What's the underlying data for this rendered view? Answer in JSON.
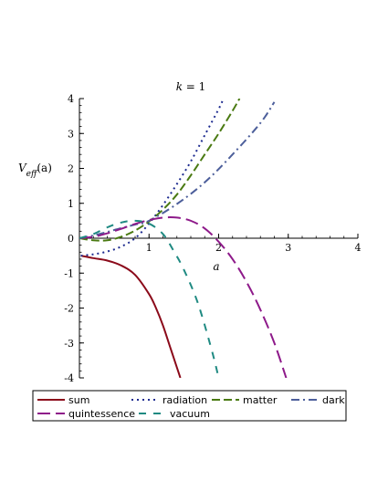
{
  "chart_data": {
    "type": "line",
    "title": "k = 1",
    "title_var": "k",
    "title_rest": " = 1",
    "xlabel": "a",
    "ylabel": "V_eff(a)",
    "ylabel_parts": {
      "V": "V",
      "sub": "eff",
      "arg": "(a)"
    },
    "xlim": [
      0,
      4
    ],
    "ylim": [
      -4,
      4
    ],
    "xticks": [
      "1",
      "2",
      "3",
      "4"
    ],
    "yticks": [
      "-4",
      "-3",
      "-2",
      "-1",
      "0",
      "1",
      "2",
      "3",
      "4"
    ],
    "legend_position": "bottom",
    "series": [
      {
        "name": "sum",
        "color": "#8b0a1a",
        "dash": "solid",
        "x": [
          0.02,
          0.2,
          0.4,
          0.6,
          0.8,
          1.0,
          1.1,
          1.2,
          1.3,
          1.4,
          1.45
        ],
        "y": [
          -0.5,
          -0.57,
          -0.64,
          -0.78,
          -1.05,
          -1.6,
          -2.0,
          -2.5,
          -3.1,
          -3.7,
          -4.0
        ]
      },
      {
        "name": "radiation",
        "color": "#1c2a8f",
        "dash": "dot",
        "x": [
          0.02,
          0.2,
          0.4,
          0.6,
          0.8,
          1.0,
          1.2,
          1.4,
          1.6,
          1.8,
          2.0,
          2.07
        ],
        "y": [
          -0.5,
          -0.46,
          -0.38,
          -0.24,
          0.0,
          0.42,
          0.95,
          1.55,
          2.2,
          2.95,
          3.7,
          4.0
        ]
      },
      {
        "name": "matter",
        "color": "#4a7a12",
        "dash": "long",
        "x": [
          0,
          0.2,
          0.4,
          0.6,
          0.8,
          1.0,
          1.2,
          1.4,
          1.6,
          1.8,
          2.0,
          2.2,
          2.3
        ],
        "y": [
          0.0,
          -0.06,
          -0.06,
          0.04,
          0.22,
          0.48,
          0.82,
          1.25,
          1.8,
          2.4,
          3.0,
          3.65,
          4.0
        ]
      },
      {
        "name": "dark",
        "color": "#4d5f9b",
        "dash": "dashdot",
        "x": [
          0,
          0.2,
          0.4,
          0.6,
          0.8,
          1.0,
          1.4,
          1.8,
          2.2,
          2.6,
          2.8
        ],
        "y": [
          0.0,
          0.08,
          0.18,
          0.29,
          0.39,
          0.5,
          0.98,
          1.6,
          2.4,
          3.3,
          3.9
        ]
      },
      {
        "name": "quintessence",
        "color": "#8e1a8a",
        "dash": "longdash",
        "x": [
          0,
          0.2,
          0.4,
          0.6,
          0.8,
          1.0,
          1.2,
          1.4,
          1.6,
          1.8,
          2.0,
          2.2,
          2.4,
          2.6,
          2.8,
          2.97
        ],
        "y": [
          0.0,
          0.04,
          0.14,
          0.27,
          0.41,
          0.52,
          0.59,
          0.59,
          0.5,
          0.28,
          -0.1,
          -0.6,
          -1.25,
          -2.05,
          -3.0,
          -4.0
        ]
      },
      {
        "name": "vacuum",
        "color": "#1f8a82",
        "dash": "dash",
        "x": [
          0,
          0.2,
          0.4,
          0.6,
          0.8,
          1.0,
          1.2,
          1.35,
          1.5,
          1.7,
          1.9,
          2.0
        ],
        "y": [
          0.0,
          0.12,
          0.31,
          0.45,
          0.5,
          0.42,
          0.12,
          -0.35,
          -0.9,
          -1.85,
          -3.2,
          -4.0
        ]
      }
    ]
  }
}
